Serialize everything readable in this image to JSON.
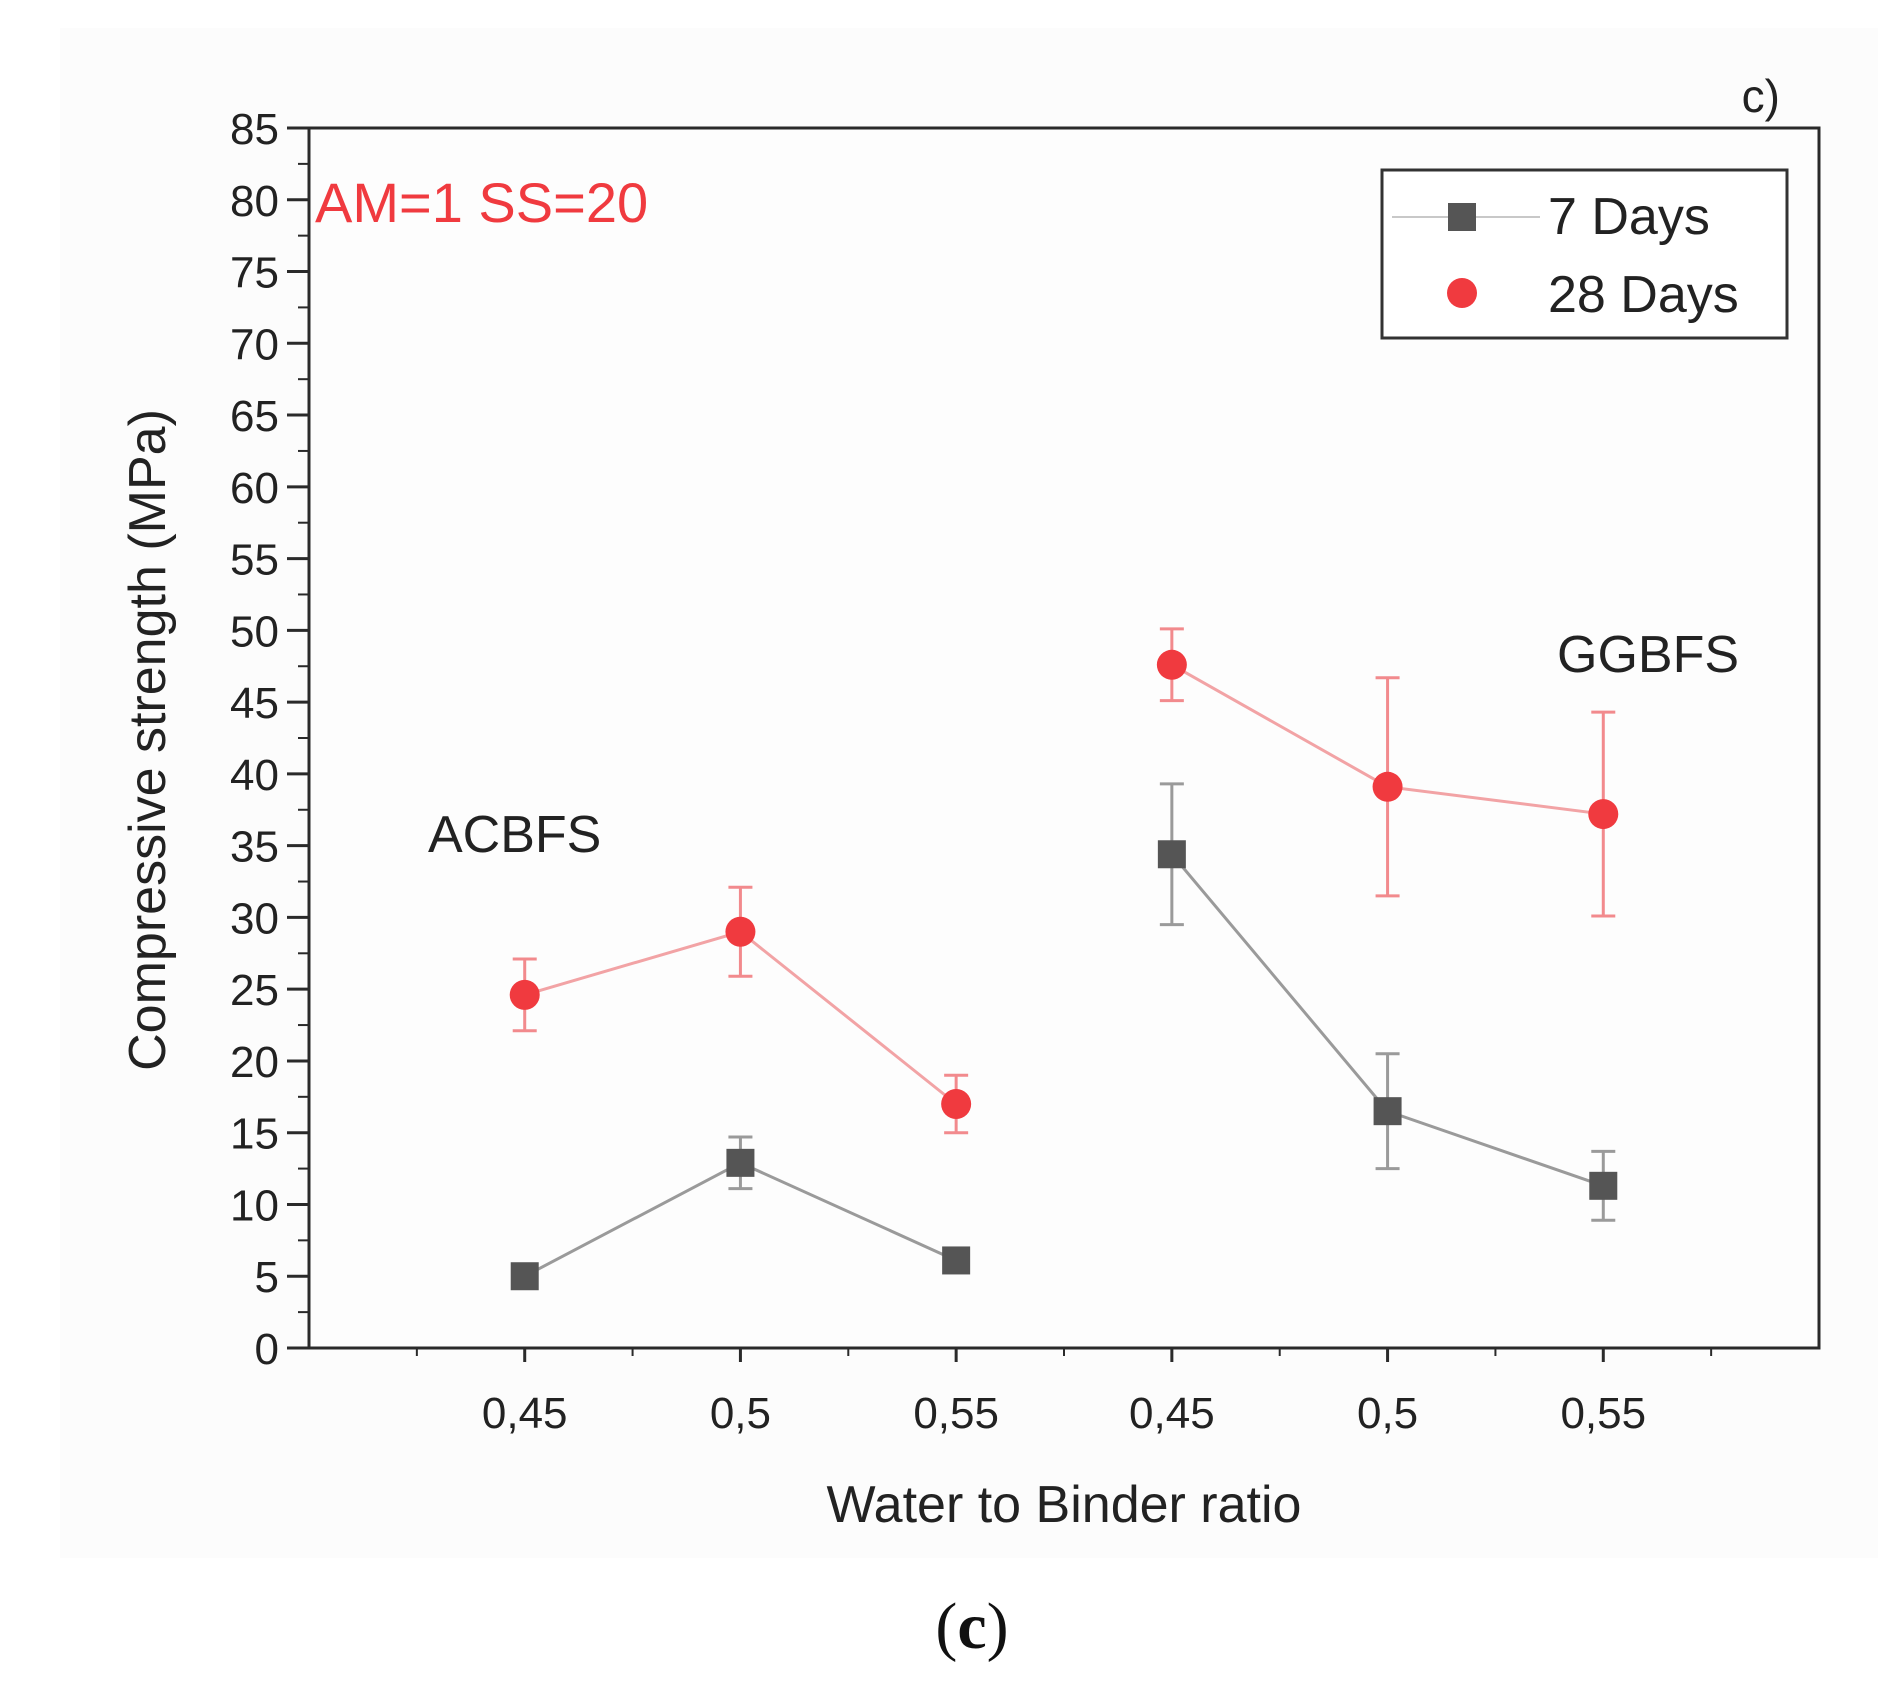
{
  "chart_data": {
    "type": "line",
    "panel_label": "c)",
    "caption": {
      "open": "(",
      "letter": "c",
      "close": ")"
    },
    "annotation": "AM=1 SS=20",
    "group_labels": [
      "ACBFS",
      "GGBFS"
    ],
    "xlabel": "Water to Binder ratio",
    "ylabel": "Compressive strength (MPa)",
    "categories": [
      "0,45",
      "0,5",
      "0,55",
      "0,45",
      "0,5",
      "0,55"
    ],
    "ylim": [
      0,
      85
    ],
    "yticks": [
      "0",
      "5",
      "10",
      "15",
      "20",
      "25",
      "30",
      "35",
      "40",
      "45",
      "50",
      "55",
      "60",
      "65",
      "70",
      "75",
      "80",
      "85"
    ],
    "legend_position": "top-right",
    "series": [
      {
        "name": "7 Days",
        "marker": "square",
        "color": "#555555",
        "line_color": "#9a9a9a",
        "segments": [
          [
            0,
            1,
            2
          ],
          [
            3,
            4,
            5
          ]
        ],
        "values": [
          5.0,
          12.9,
          6.1,
          34.4,
          16.5,
          11.3
        ],
        "errors": [
          0.3,
          1.8,
          0.3,
          4.9,
          4.0,
          2.4
        ]
      },
      {
        "name": "28 Days",
        "marker": "circle",
        "color": "#f03a3f",
        "line_color": "#f2a3a5",
        "segments": [
          [
            0,
            1,
            2
          ],
          [
            3,
            4,
            5
          ]
        ],
        "values": [
          24.6,
          29.0,
          17.0,
          47.6,
          39.1,
          37.2
        ],
        "errors": [
          2.5,
          3.1,
          2.0,
          2.5,
          7.6,
          7.1
        ]
      }
    ]
  }
}
